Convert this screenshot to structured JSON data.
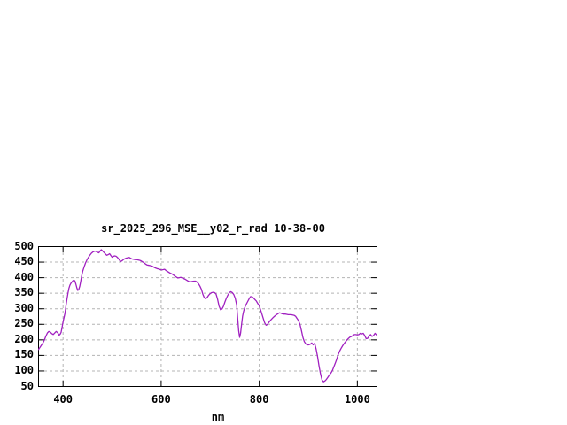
{
  "page": {
    "background": "#ffffff",
    "text_color": "#000000"
  },
  "chart_data": {
    "type": "line",
    "title": "sr_2025_296_MSE__y02_r_rad 10-38-00",
    "xlabel": "nm",
    "ylabel": "",
    "xlim": [
      350,
      1040
    ],
    "ylim": [
      50,
      500
    ],
    "grid": true,
    "legend": "none",
    "line_color": "#a020c0",
    "grid_color": "#b4b4b4",
    "border_color": "#000000",
    "x_ticks": [
      {
        "value": 400,
        "label": "400"
      },
      {
        "value": 600,
        "label": "600"
      },
      {
        "value": 800,
        "label": "800"
      },
      {
        "value": 1000,
        "label": "1000"
      }
    ],
    "y_ticks": [
      {
        "value": 50,
        "label": "50"
      },
      {
        "value": 100,
        "label": "100"
      },
      {
        "value": 150,
        "label": "150"
      },
      {
        "value": 200,
        "label": "200"
      },
      {
        "value": 250,
        "label": "250"
      },
      {
        "value": 300,
        "label": "300"
      },
      {
        "value": 350,
        "label": "350"
      },
      {
        "value": 400,
        "label": "400"
      },
      {
        "value": 450,
        "label": "450"
      },
      {
        "value": 500,
        "label": "500"
      }
    ],
    "series": [
      {
        "points": [
          [
            350,
            169
          ],
          [
            353,
            176
          ],
          [
            356,
            183
          ],
          [
            359,
            190
          ],
          [
            362,
            200
          ],
          [
            365,
            212
          ],
          [
            368,
            222
          ],
          [
            371,
            227
          ],
          [
            374,
            225
          ],
          [
            377,
            220
          ],
          [
            380,
            217
          ],
          [
            383,
            222
          ],
          [
            386,
            227
          ],
          [
            389,
            223
          ],
          [
            392,
            215
          ],
          [
            394,
            218
          ],
          [
            396,
            224
          ],
          [
            398,
            240
          ],
          [
            400,
            258
          ],
          [
            402,
            272
          ],
          [
            404,
            286
          ],
          [
            406,
            310
          ],
          [
            408,
            331
          ],
          [
            410,
            350
          ],
          [
            412,
            366
          ],
          [
            414,
            376
          ],
          [
            416,
            382
          ],
          [
            418,
            386
          ],
          [
            420,
            390
          ],
          [
            422,
            392
          ],
          [
            424,
            390
          ],
          [
            426,
            380
          ],
          [
            428,
            368
          ],
          [
            430,
            359
          ],
          [
            432,
            362
          ],
          [
            434,
            372
          ],
          [
            436,
            388
          ],
          [
            438,
            406
          ],
          [
            440,
            420
          ],
          [
            443,
            435
          ],
          [
            446,
            448
          ],
          [
            449,
            458
          ],
          [
            452,
            466
          ],
          [
            455,
            473
          ],
          [
            458,
            479
          ],
          [
            461,
            483
          ],
          [
            464,
            485
          ],
          [
            467,
            485
          ],
          [
            470,
            482
          ],
          [
            473,
            480
          ],
          [
            476,
            487
          ],
          [
            478,
            490
          ],
          [
            480,
            487
          ],
          [
            483,
            482
          ],
          [
            486,
            477
          ],
          [
            489,
            472
          ],
          [
            492,
            474
          ],
          [
            495,
            477
          ],
          [
            498,
            470
          ],
          [
            500,
            466
          ],
          [
            502,
            468
          ],
          [
            505,
            470
          ],
          [
            508,
            469
          ],
          [
            511,
            465
          ],
          [
            514,
            459
          ],
          [
            517,
            452
          ],
          [
            520,
            454
          ],
          [
            523,
            458
          ],
          [
            526,
            461
          ],
          [
            529,
            463
          ],
          [
            532,
            464
          ],
          [
            535,
            465
          ],
          [
            538,
            462
          ],
          [
            541,
            460
          ],
          [
            544,
            459
          ],
          [
            547,
            458
          ],
          [
            550,
            458
          ],
          [
            553,
            457
          ],
          [
            556,
            456
          ],
          [
            559,
            454
          ],
          [
            562,
            451
          ],
          [
            565,
            448
          ],
          [
            568,
            444
          ],
          [
            571,
            441
          ],
          [
            574,
            440
          ],
          [
            577,
            439
          ],
          [
            580,
            438
          ],
          [
            583,
            436
          ],
          [
            586,
            433
          ],
          [
            589,
            431
          ],
          [
            592,
            429
          ],
          [
            595,
            428
          ],
          [
            598,
            426
          ],
          [
            601,
            425
          ],
          [
            604,
            426
          ],
          [
            607,
            427
          ],
          [
            610,
            423
          ],
          [
            613,
            420
          ],
          [
            616,
            417
          ],
          [
            619,
            414
          ],
          [
            622,
            412
          ],
          [
            625,
            409
          ],
          [
            628,
            405
          ],
          [
            631,
            402
          ],
          [
            634,
            399
          ],
          [
            637,
            400
          ],
          [
            640,
            401
          ],
          [
            643,
            399
          ],
          [
            646,
            397
          ],
          [
            649,
            395
          ],
          [
            652,
            392
          ],
          [
            655,
            389
          ],
          [
            658,
            387
          ],
          [
            661,
            387
          ],
          [
            664,
            388
          ],
          [
            667,
            389
          ],
          [
            670,
            389
          ],
          [
            673,
            386
          ],
          [
            676,
            381
          ],
          [
            679,
            373
          ],
          [
            682,
            363
          ],
          [
            685,
            347
          ],
          [
            688,
            336
          ],
          [
            691,
            332
          ],
          [
            694,
            337
          ],
          [
            697,
            344
          ],
          [
            700,
            349
          ],
          [
            703,
            352
          ],
          [
            706,
            353
          ],
          [
            709,
            352
          ],
          [
            712,
            347
          ],
          [
            715,
            331
          ],
          [
            718,
            309
          ],
          [
            721,
            297
          ],
          [
            724,
            299
          ],
          [
            727,
            308
          ],
          [
            730,
            322
          ],
          [
            733,
            334
          ],
          [
            736,
            344
          ],
          [
            739,
            352
          ],
          [
            742,
            355
          ],
          [
            745,
            352
          ],
          [
            748,
            346
          ],
          [
            751,
            334
          ],
          [
            754,
            312
          ],
          [
            756,
            270
          ],
          [
            758,
            230
          ],
          [
            760,
            208
          ],
          [
            762,
            222
          ],
          [
            764,
            250
          ],
          [
            766,
            276
          ],
          [
            768,
            291
          ],
          [
            770,
            302
          ],
          [
            773,
            313
          ],
          [
            776,
            322
          ],
          [
            779,
            331
          ],
          [
            782,
            339
          ],
          [
            785,
            339
          ],
          [
            788,
            335
          ],
          [
            791,
            330
          ],
          [
            794,
            325
          ],
          [
            797,
            317
          ],
          [
            800,
            310
          ],
          [
            802,
            300
          ],
          [
            805,
            285
          ],
          [
            808,
            270
          ],
          [
            811,
            255
          ],
          [
            814,
            247
          ],
          [
            817,
            250
          ],
          [
            820,
            257
          ],
          [
            823,
            263
          ],
          [
            826,
            268
          ],
          [
            829,
            273
          ],
          [
            832,
            277
          ],
          [
            835,
            281
          ],
          [
            838,
            284
          ],
          [
            841,
            287
          ],
          [
            844,
            286
          ],
          [
            847,
            284
          ],
          [
            850,
            283
          ],
          [
            853,
            283
          ],
          [
            856,
            282
          ],
          [
            859,
            281
          ],
          [
            862,
            281
          ],
          [
            865,
            281
          ],
          [
            868,
            280
          ],
          [
            871,
            279
          ],
          [
            874,
            276
          ],
          [
            877,
            269
          ],
          [
            880,
            262
          ],
          [
            883,
            250
          ],
          [
            886,
            230
          ],
          [
            889,
            208
          ],
          [
            892,
            194
          ],
          [
            895,
            187
          ],
          [
            898,
            184
          ],
          [
            901,
            184
          ],
          [
            904,
            186
          ],
          [
            907,
            190
          ],
          [
            910,
            184
          ],
          [
            913,
            189
          ],
          [
            916,
            170
          ],
          [
            919,
            145
          ],
          [
            922,
            115
          ],
          [
            925,
            90
          ],
          [
            928,
            71
          ],
          [
            931,
            65
          ],
          [
            934,
            68
          ],
          [
            937,
            73
          ],
          [
            940,
            80
          ],
          [
            943,
            87
          ],
          [
            946,
            93
          ],
          [
            949,
            101
          ],
          [
            952,
            113
          ],
          [
            955,
            125
          ],
          [
            958,
            138
          ],
          [
            961,
            153
          ],
          [
            964,
            164
          ],
          [
            967,
            173
          ],
          [
            970,
            181
          ],
          [
            973,
            188
          ],
          [
            976,
            194
          ],
          [
            979,
            200
          ],
          [
            982,
            205
          ],
          [
            985,
            209
          ],
          [
            988,
            211
          ],
          [
            991,
            214
          ],
          [
            994,
            217
          ],
          [
            997,
            217
          ],
          [
            1000,
            216
          ],
          [
            1003,
            217
          ],
          [
            1006,
            221
          ],
          [
            1009,
            219
          ],
          [
            1012,
            221
          ],
          [
            1015,
            214
          ],
          [
            1018,
            204
          ],
          [
            1021,
            205
          ],
          [
            1024,
            212
          ],
          [
            1027,
            217
          ],
          [
            1030,
            211
          ],
          [
            1033,
            214
          ],
          [
            1036,
            221
          ],
          [
            1039,
            216
          ],
          [
            1040,
            213
          ]
        ]
      }
    ]
  }
}
